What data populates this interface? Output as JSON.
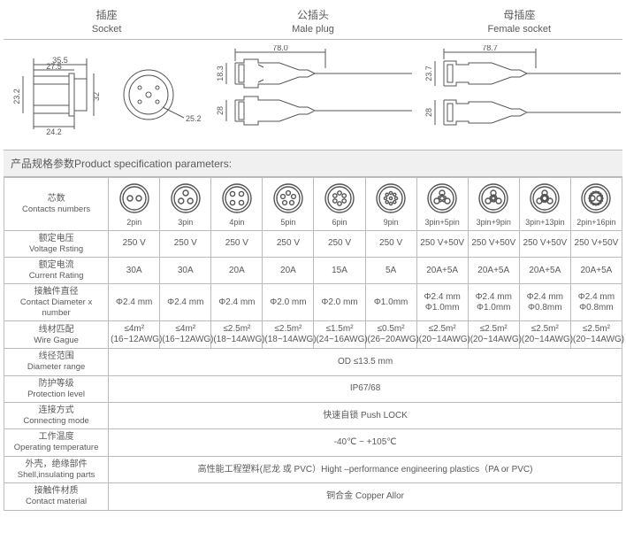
{
  "headers": {
    "socket": {
      "cn": "插座",
      "en": "Socket"
    },
    "male": {
      "cn": "公插头",
      "en": "Male plug"
    },
    "female": {
      "cn": "母插座",
      "en": "Female socket"
    }
  },
  "dimensions": {
    "socket": {
      "w1": "35.5",
      "w2": "27.5",
      "h1": "23.2",
      "h2": "32",
      "dia": "25.2",
      "base": "24.2"
    },
    "male": {
      "len": "78.0",
      "h": "18.3",
      "d": "28"
    },
    "female": {
      "len": "78.7",
      "h": "23.7",
      "d": "28"
    }
  },
  "params_title": "产品规格参数Product specification parameters:",
  "rows": {
    "contacts": {
      "cn": "芯数",
      "en": "Contacts numbers"
    },
    "voltage": {
      "cn": "额定电压",
      "en": "Voltage Rsting"
    },
    "current": {
      "cn": "额定电流",
      "en": "Current Rating"
    },
    "diameter": {
      "cn": "接触件直径",
      "en": "Contact Diameter x number"
    },
    "wire": {
      "cn": "线材匹配",
      "en": "Wire Gague"
    },
    "odrange": {
      "cn": "线径范围",
      "en": "Diameter range"
    },
    "protect": {
      "cn": "防护等级",
      "en": "Protection level"
    },
    "connmode": {
      "cn": "连接方式",
      "en": "Connecting mode"
    },
    "optemp": {
      "cn": "工作温度",
      "en": "Operating temperature"
    },
    "shell": {
      "cn": "外壳，绝缘部件",
      "en": "Shell,insulating parts"
    },
    "contactmat": {
      "cn": "接触件材质",
      "en": "Contact material"
    }
  },
  "variants": [
    {
      "label": "2pin",
      "pins": 2,
      "volt": "250 V",
      "curr": "30A",
      "cdia": "Φ2.4 mm",
      "wire": "≤4m²\n(16~12AWG)"
    },
    {
      "label": "3pin",
      "pins": 3,
      "volt": "250 V",
      "curr": "30A",
      "cdia": "Φ2.4 mm",
      "wire": "≤4m²\n(16~12AWG)"
    },
    {
      "label": "4pin",
      "pins": 4,
      "volt": "250 V",
      "curr": "20A",
      "cdia": "Φ2.4 mm",
      "wire": "≤2.5m²\n(18~14AWG)"
    },
    {
      "label": "5pin",
      "pins": 5,
      "volt": "250 V",
      "curr": "20A",
      "cdia": "Φ2.0 mm",
      "wire": "≤2.5m²\n(18~14AWG)"
    },
    {
      "label": "6pin",
      "pins": 6,
      "volt": "250 V",
      "curr": "15A",
      "cdia": "Φ2.0 mm",
      "wire": "≤1.5m²\n(24~16AWG)"
    },
    {
      "label": "9pin",
      "pins": 9,
      "volt": "250 V",
      "curr": "5A",
      "cdia": "Φ1.0mm",
      "wire": "≤0.5m²\n(26~20AWG)"
    },
    {
      "label": "3pin+5pin",
      "pins": "3+5",
      "volt": "250 V+50V",
      "curr": "20A+5A",
      "cdia": "Φ2.4 mm\nΦ1.0mm",
      "wire": "≤2.5m²\n(20~14AWG)"
    },
    {
      "label": "3pin+9pin",
      "pins": "3+9",
      "volt": "250 V+50V",
      "curr": "20A+5A",
      "cdia": "Φ2.4 mm\nΦ1.0mm",
      "wire": "≤2.5m²\n(20~14AWG)"
    },
    {
      "label": "3pin+13pin",
      "pins": "3+13",
      "volt": "250 V+50V",
      "curr": "20A+5A",
      "cdia": "Φ2.4 mm\nΦ0.8mm",
      "wire": "≤2.5m²\n(20~14AWG)"
    },
    {
      "label": "2pin+16pin",
      "pins": "2+16",
      "volt": "250 V+50V",
      "curr": "20A+5A",
      "cdia": "Φ2.4 mm\nΦ0.8mm",
      "wire": "≤2.5m²\n(20~14AWG)"
    }
  ],
  "shared": {
    "odrange": "OD ≤13.5 mm",
    "protect": "IP67/68",
    "connmode": "快速自锁 Push LOCK",
    "optemp": "-40℃ ~ +105℃",
    "shell": "高性能工程塑料(尼龙 或 PVC）Hight –performance engineering plastics（PA or PVC)",
    "contactmat": "铜合金 Copper Allor"
  },
  "colors": {
    "line": "#555555",
    "border": "#bbbbbb",
    "text": "#5a5a5a",
    "headerbg": "#f0f0f0"
  }
}
